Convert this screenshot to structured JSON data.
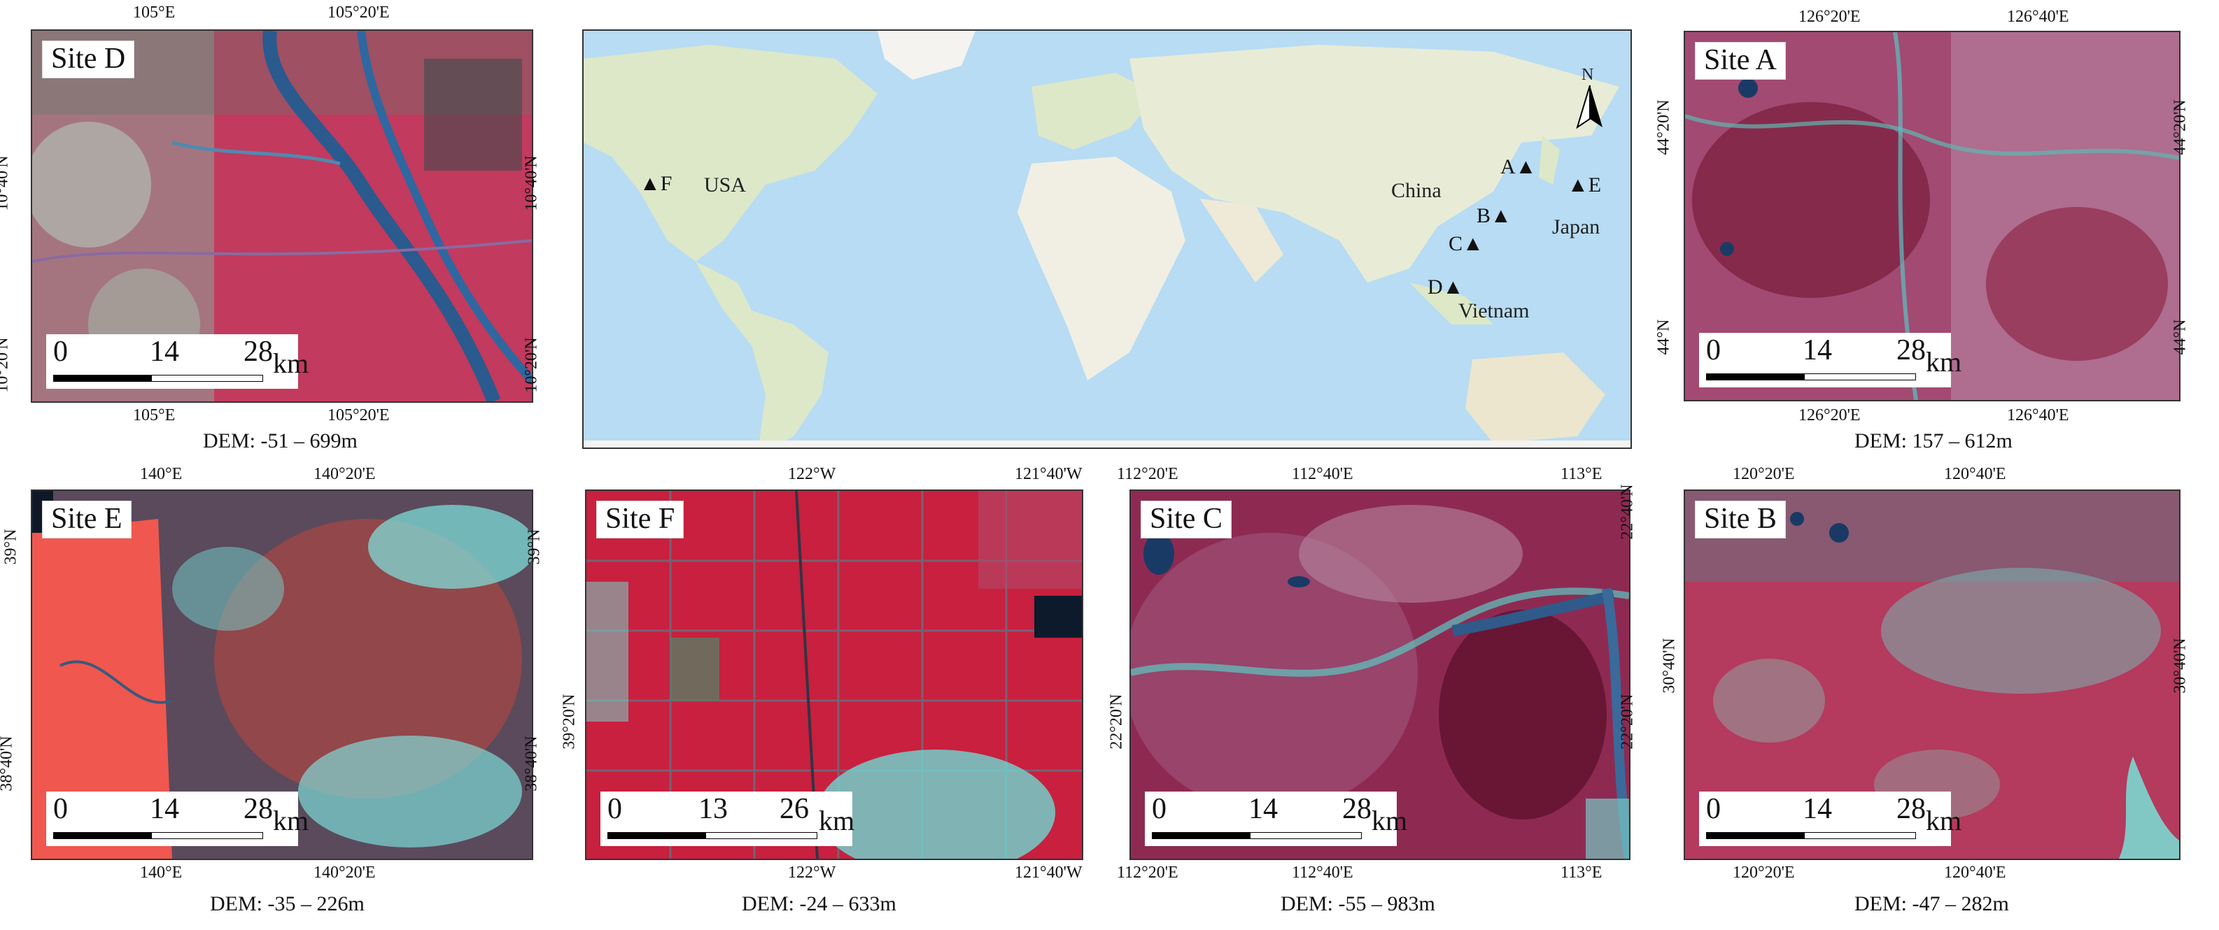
{
  "sites": {
    "D": {
      "label": "Site D",
      "dem": "DEM: -51 – 699m",
      "top_ticks": [
        "105°E",
        "105°20'E"
      ],
      "bottom_ticks": [
        "105°E",
        "105°20'E"
      ],
      "left_ticks": [
        "10°40'N",
        "10°20'N"
      ],
      "right_ticks": [
        "10°40'N",
        "10°20'N"
      ],
      "scale": [
        "0",
        "14",
        "28",
        "km"
      ]
    },
    "A": {
      "label": "Site A",
      "dem": "DEM: 157 – 612m",
      "top_ticks": [
        "126°20'E",
        "126°40'E"
      ],
      "bottom_ticks": [
        "126°20'E",
        "126°40'E"
      ],
      "left_ticks": [
        "44°20'N",
        "44°N"
      ],
      "right_ticks": [
        "44°20'N",
        "44°N"
      ],
      "scale": [
        "0",
        "14",
        "28",
        "km"
      ]
    },
    "E": {
      "label": "Site E",
      "dem": "DEM: -35 – 226m",
      "top_ticks": [
        "140°E",
        "140°20'E"
      ],
      "bottom_ticks": [
        "140°E",
        "140°20'E"
      ],
      "left_ticks": [
        "39°N",
        "38°40'N"
      ],
      "right_ticks": [
        "39°N",
        "38°40'N"
      ],
      "scale": [
        "0",
        "14",
        "28",
        "km"
      ]
    },
    "F": {
      "label": "Site F",
      "dem": "DEM: -24 – 633m",
      "top_ticks": [
        "122°W",
        "121°40'W"
      ],
      "bottom_ticks": [
        "122°W",
        "121°40'W"
      ],
      "left_ticks": [
        "39°20'N"
      ],
      "right_ticks": [],
      "scale": [
        "0",
        "13",
        "26",
        "km"
      ]
    },
    "C": {
      "label": "Site C",
      "dem": "DEM: -55 – 983m",
      "top_ticks": [
        "112°20'E",
        "112°40'E",
        "113°E"
      ],
      "bottom_ticks": [
        "112°20'E",
        "112°40'E",
        "113°E"
      ],
      "left_ticks": [
        "22°20'N"
      ],
      "right_ticks": [
        "22°40'N",
        "22°20'N"
      ],
      "scale": [
        "0",
        "14",
        "28",
        "km"
      ]
    },
    "B": {
      "label": "Site B",
      "dem": "DEM: -47 – 282m",
      "top_ticks": [
        "120°20'E",
        "120°40'E"
      ],
      "bottom_ticks": [
        "120°20'E",
        "120°40'E"
      ],
      "left_ticks": [
        "30°40'N"
      ],
      "right_ticks": [
        "30°40'N"
      ],
      "scale": [
        "0",
        "14",
        "28",
        "km"
      ]
    }
  },
  "world_map": {
    "north_label": "N",
    "countries": {
      "usa": "USA",
      "china": "China",
      "japan": "Japan",
      "vietnam": "Vietnam"
    },
    "markers": {
      "F": "F",
      "A": "A",
      "E": "E",
      "B": "B",
      "C": "C",
      "D": "D"
    },
    "marker_symbol": "▲"
  }
}
